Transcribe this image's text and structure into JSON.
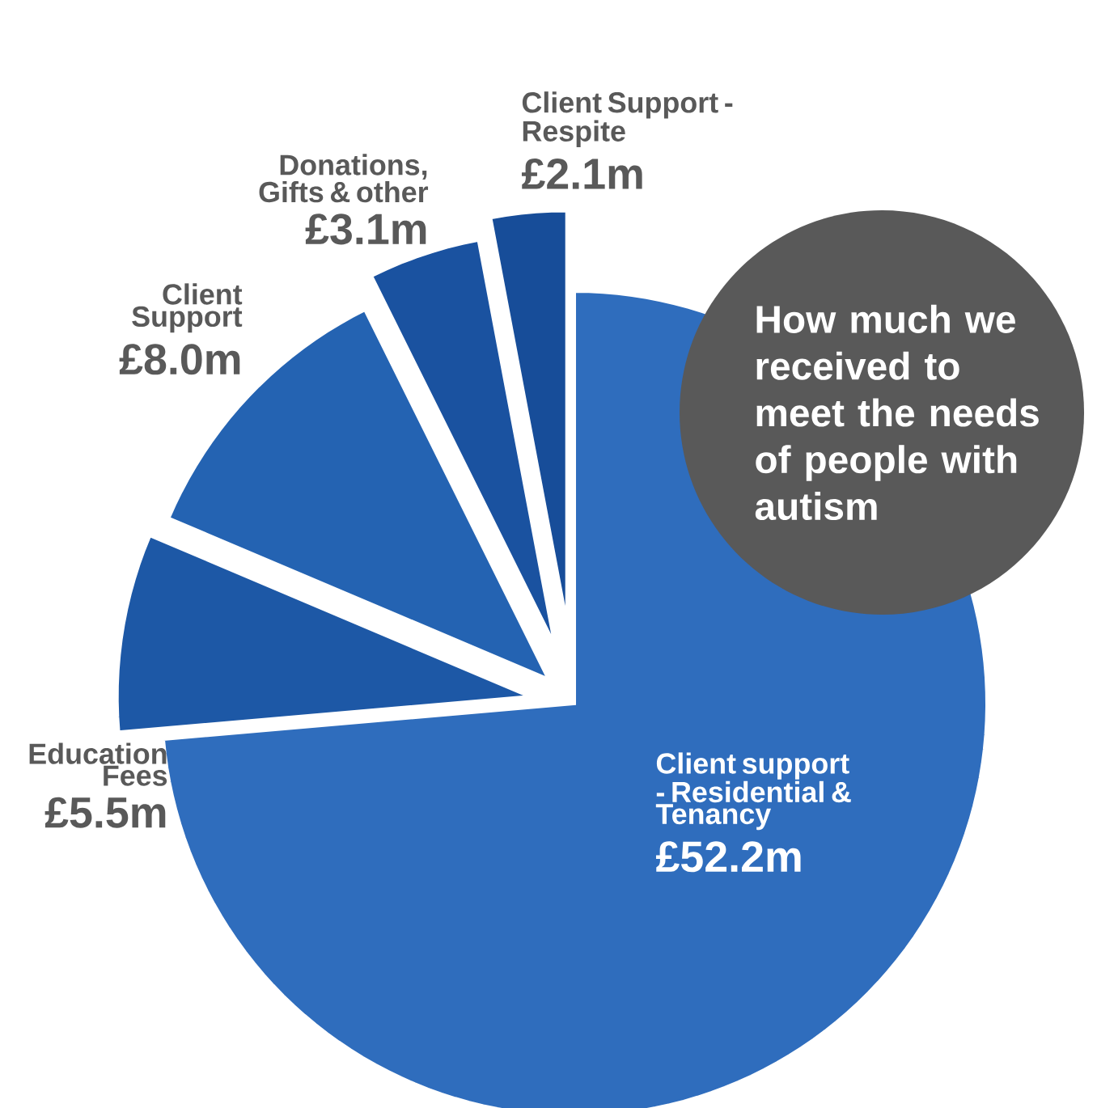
{
  "chart_data": {
    "type": "pie",
    "title": "How much we received to meet the needs of people with autism",
    "categories": [
      "Client support - Residential & Tenancy",
      "Education Fees",
      "Client Support",
      "Donations, Gifts & other",
      "Client Support - Respite"
    ],
    "values": [
      52.2,
      5.5,
      8.0,
      3.1,
      2.1
    ],
    "value_labels": [
      "£52.2m",
      "£5.5m",
      "£8.0m",
      "£3.1m",
      "£2.1m"
    ],
    "colors": [
      "#2f6dbd",
      "#1d58a6",
      "#2463b2",
      "#1a52a0",
      "#174d99"
    ]
  }
}
